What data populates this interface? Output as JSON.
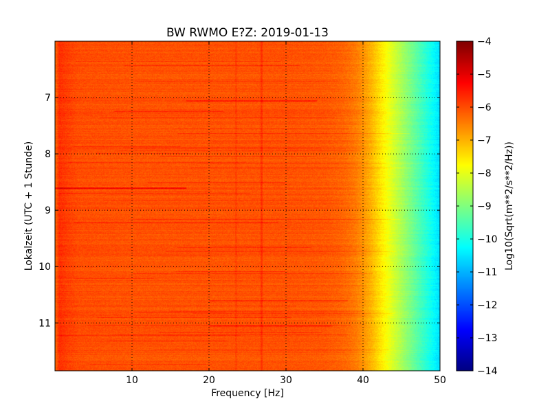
{
  "chart_data": {
    "type": "heatmap",
    "title": "BW RWMO E?Z: 2019-01-13",
    "xlabel": "Frequency [Hz]",
    "ylabel": "Lokalzeit (UTC + 1 Stunde)",
    "xlim": [
      0,
      50
    ],
    "ylim": [
      6.0,
      11.85
    ],
    "y_inverted": true,
    "x_ticks": [
      10,
      20,
      30,
      40,
      50
    ],
    "x_tick_labels": [
      "10",
      "20",
      "30",
      "40",
      "50"
    ],
    "y_ticks": [
      7,
      8,
      9,
      10,
      11
    ],
    "y_tick_labels": [
      "7",
      "8",
      "9",
      "10",
      "11"
    ],
    "grid": true,
    "colormap": "jet",
    "colorbar": {
      "label": "Log10(Sqrt(m**2/s**2/Hz))",
      "min": -14,
      "max": -4,
      "ticks": [
        -4,
        -5,
        -6,
        -7,
        -8,
        -9,
        -10,
        -11,
        -12,
        -13,
        -14
      ],
      "tick_labels": [
        "−4",
        "−5",
        "−6",
        "−7",
        "−8",
        "−9",
        "−10",
        "−11",
        "−12",
        "−13",
        "−14"
      ]
    },
    "spectral_profile": {
      "frequency_hz": [
        0,
        0.5,
        1.5,
        3,
        10,
        20,
        30,
        35,
        37,
        38,
        39,
        40,
        41,
        42,
        43,
        44,
        45,
        46,
        47,
        48,
        49,
        50
      ],
      "level_log10": [
        -6.3,
        -5.7,
        -5.85,
        -6.0,
        -6.05,
        -6.05,
        -6.05,
        -6.1,
        -6.2,
        -6.3,
        -6.45,
        -6.7,
        -7.0,
        -7.4,
        -7.8,
        -8.2,
        -8.6,
        -9.0,
        -9.4,
        -9.8,
        -10.2,
        -10.6
      ]
    },
    "time_features": [
      {
        "time": 8.6,
        "freq_from": 0,
        "freq_to": 17,
        "delta": 0.9
      },
      {
        "time": 7.05,
        "freq_from": 17,
        "freq_to": 34,
        "delta": 0.5
      },
      {
        "time": 11.05,
        "freq_from": 20,
        "freq_to": 36,
        "delta": 0.45
      },
      {
        "time": 8.5,
        "freq_from": 12,
        "freq_to": 30,
        "delta": 0.3
      },
      {
        "time": 10.6,
        "freq_from": 20,
        "freq_to": 38,
        "delta": 0.3
      },
      {
        "time": 10.8,
        "freq_from": 15,
        "freq_to": 40,
        "delta": 0.25
      },
      {
        "time": 9.65,
        "freq_from": 20,
        "freq_to": 40,
        "delta": 0.2
      }
    ],
    "frequency_features": [
      {
        "frequency": 26.8,
        "delta": 0.3
      },
      {
        "frequency": 23.5,
        "delta": 0.15
      }
    ]
  }
}
